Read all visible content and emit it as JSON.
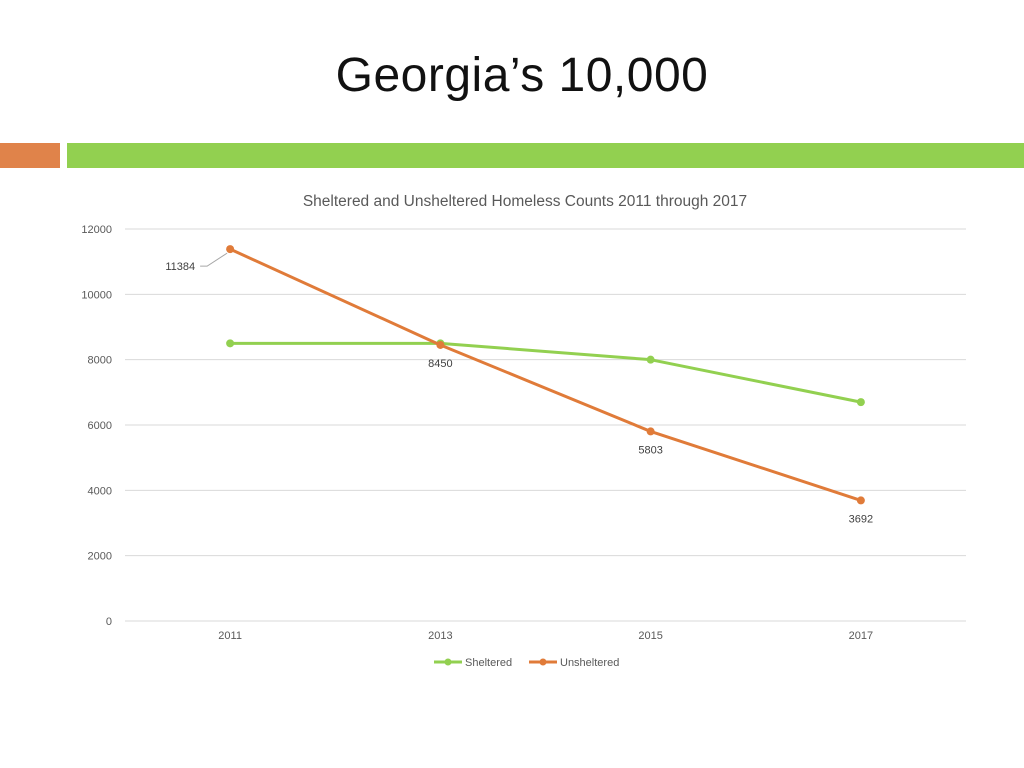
{
  "slide": {
    "title": "Georgia’s 10,000",
    "accent_colors": {
      "left_bar": "#e0834a",
      "right_bar": "#92d050"
    }
  },
  "chart_data": {
    "type": "line",
    "title": "Sheltered and Unsheltered Homeless Counts 2011 through 2017",
    "xlabel": "",
    "ylabel": "",
    "categories": [
      "2011",
      "2013",
      "2015",
      "2017"
    ],
    "ylim": [
      0,
      12000
    ],
    "yticks": [
      0,
      2000,
      4000,
      6000,
      8000,
      10000,
      12000
    ],
    "grid": true,
    "legend_position": "bottom",
    "series": [
      {
        "name": "Sheltered",
        "color": "#92d050",
        "values": [
          8500,
          8500,
          8000,
          6700
        ],
        "data_labels": [
          null,
          null,
          null,
          null
        ]
      },
      {
        "name": "Unsheltered",
        "color": "#e07b39",
        "values": [
          11384,
          8450,
          5803,
          3692
        ],
        "data_labels": [
          "11384",
          "8450",
          "5803",
          "3692"
        ]
      }
    ]
  }
}
